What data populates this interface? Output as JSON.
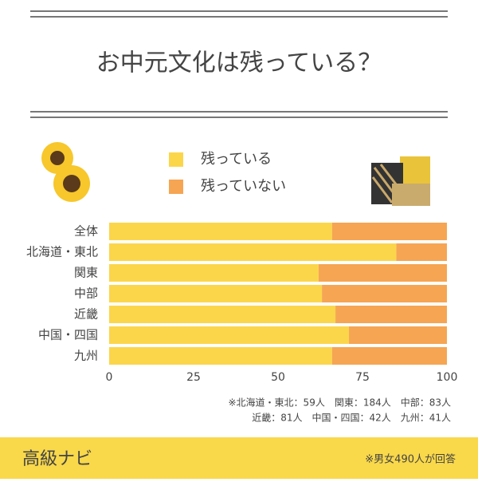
{
  "chart_data": {
    "type": "stacked-barh",
    "title": "お中元文化は残っている？",
    "categories": [
      "全体",
      "北海道・東北",
      "関東",
      "中部",
      "近畿",
      "中国・四国",
      "九州"
    ],
    "series": [
      {
        "name": "残っている",
        "color": "#fcd64a",
        "values": [
          66,
          85,
          62,
          63,
          67,
          71,
          66
        ]
      },
      {
        "name": "残っていない",
        "color": "#f6a552",
        "values": [
          34,
          15,
          38,
          37,
          33,
          29,
          34
        ]
      }
    ],
    "xlim": [
      0,
      100
    ],
    "xticks": [
      0,
      25,
      50,
      75,
      100
    ],
    "notes": [
      "※北海道・東北：59人　関東：184人　中部：83人",
      "近畿：81人　中国・四国：42人　九州：41人"
    ]
  },
  "footer": {
    "brand": "高級ナビ",
    "note": "※男女490人が回答"
  }
}
